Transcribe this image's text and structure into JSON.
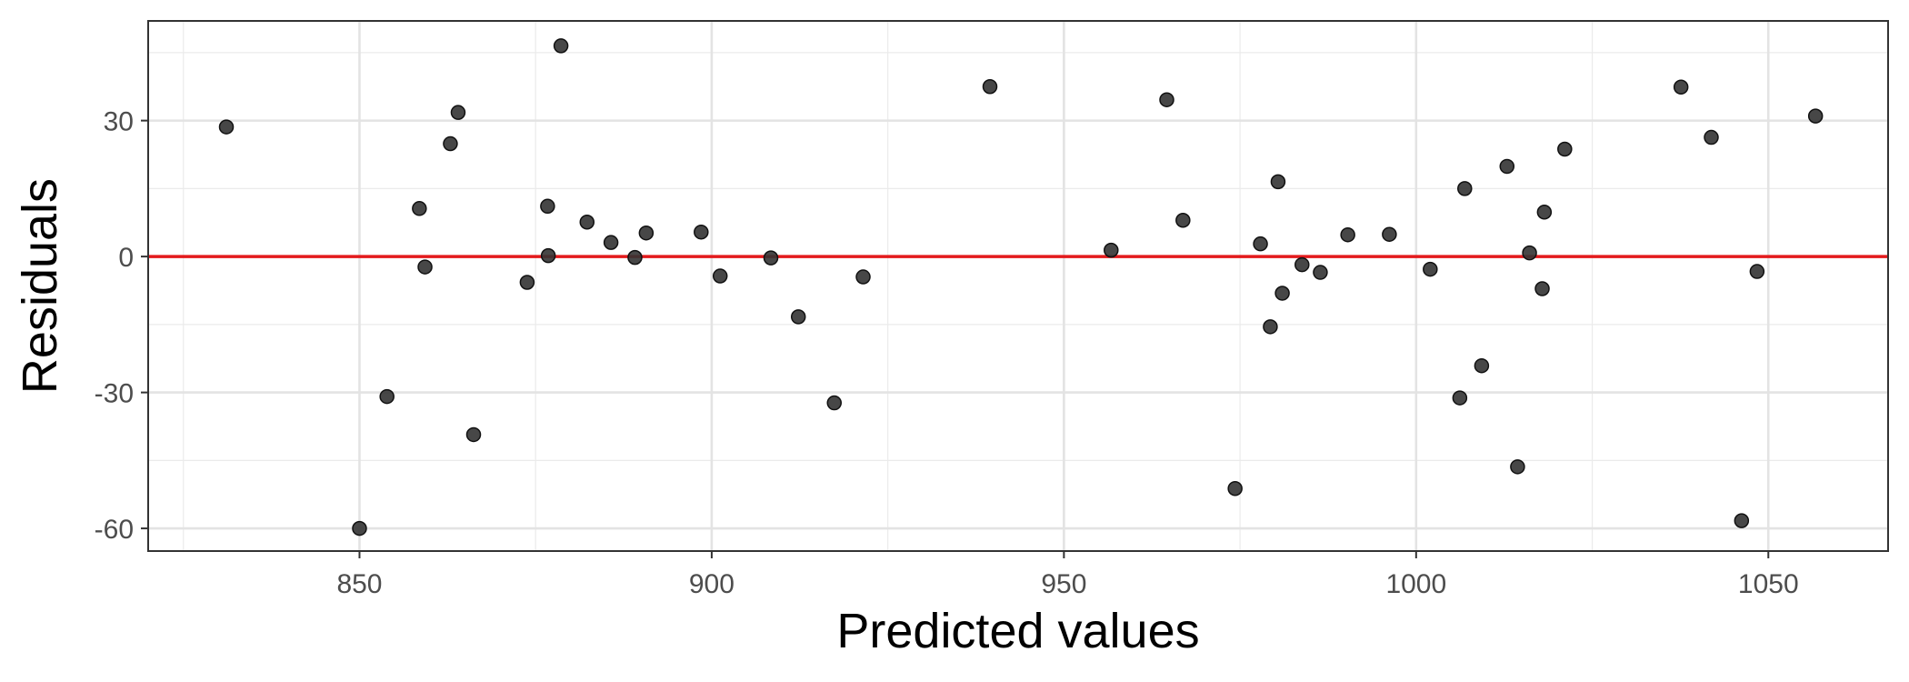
{
  "chart_data": {
    "type": "scatter",
    "title": "",
    "xlabel": "Predicted values",
    "ylabel": "Residuals",
    "xlim": [
      820,
      1067
    ],
    "ylim": [
      -65,
      52
    ],
    "x_ticks": [
      850,
      900,
      950,
      1000,
      1050
    ],
    "x_tick_labels": [
      "850",
      "900",
      "950",
      "1000",
      "1050"
    ],
    "y_ticks": [
      -60,
      -30,
      0,
      30
    ],
    "y_tick_labels": [
      "-60",
      "-30",
      "0",
      "30"
    ],
    "grid": true,
    "reference_line": {
      "y": 0,
      "color": "#e31a1c"
    },
    "point_color": "#333333",
    "points": [
      {
        "x": 831.1,
        "y": 28.6
      },
      {
        "x": 850.0,
        "y": -60.0
      },
      {
        "x": 853.9,
        "y": -30.9
      },
      {
        "x": 858.5,
        "y": 10.6
      },
      {
        "x": 859.3,
        "y": -2.3
      },
      {
        "x": 862.9,
        "y": 24.9
      },
      {
        "x": 864.0,
        "y": 31.8
      },
      {
        "x": 866.2,
        "y": -39.3
      },
      {
        "x": 873.8,
        "y": -5.7
      },
      {
        "x": 876.7,
        "y": 11.1
      },
      {
        "x": 876.8,
        "y": 0.2
      },
      {
        "x": 878.6,
        "y": 46.5
      },
      {
        "x": 882.3,
        "y": 7.6
      },
      {
        "x": 885.7,
        "y": 3.1
      },
      {
        "x": 889.1,
        "y": -0.2
      },
      {
        "x": 890.7,
        "y": 5.2
      },
      {
        "x": 898.5,
        "y": 5.4
      },
      {
        "x": 901.2,
        "y": -4.3
      },
      {
        "x": 908.4,
        "y": -0.3
      },
      {
        "x": 912.3,
        "y": -13.3
      },
      {
        "x": 917.4,
        "y": -32.3
      },
      {
        "x": 921.5,
        "y": -4.5
      },
      {
        "x": 939.5,
        "y": 37.5
      },
      {
        "x": 956.7,
        "y": 1.4
      },
      {
        "x": 964.6,
        "y": 34.6
      },
      {
        "x": 966.9,
        "y": 8.0
      },
      {
        "x": 974.3,
        "y": -51.2
      },
      {
        "x": 977.9,
        "y": 2.8
      },
      {
        "x": 979.3,
        "y": -15.5
      },
      {
        "x": 980.4,
        "y": 16.5
      },
      {
        "x": 981.0,
        "y": -8.1
      },
      {
        "x": 983.8,
        "y": -1.8
      },
      {
        "x": 986.4,
        "y": -3.5
      },
      {
        "x": 990.3,
        "y": 4.8
      },
      {
        "x": 996.2,
        "y": 4.9
      },
      {
        "x": 1002.0,
        "y": -2.8
      },
      {
        "x": 1006.2,
        "y": -31.2
      },
      {
        "x": 1006.9,
        "y": 15.0
      },
      {
        "x": 1009.3,
        "y": -24.1
      },
      {
        "x": 1012.9,
        "y": 19.9
      },
      {
        "x": 1014.4,
        "y": -46.4
      },
      {
        "x": 1016.1,
        "y": 0.8
      },
      {
        "x": 1017.9,
        "y": -7.1
      },
      {
        "x": 1018.2,
        "y": 9.8
      },
      {
        "x": 1021.1,
        "y": 23.7
      },
      {
        "x": 1037.6,
        "y": 37.4
      },
      {
        "x": 1041.9,
        "y": 26.3
      },
      {
        "x": 1046.2,
        "y": -58.3
      },
      {
        "x": 1048.4,
        "y": -3.3
      },
      {
        "x": 1056.7,
        "y": 31.0
      }
    ]
  }
}
